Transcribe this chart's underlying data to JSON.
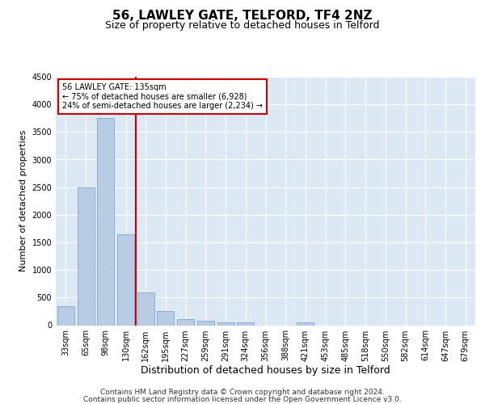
{
  "title1": "56, LAWLEY GATE, TELFORD, TF4 2NZ",
  "title2": "Size of property relative to detached houses in Telford",
  "xlabel": "Distribution of detached houses by size in Telford",
  "ylabel": "Number of detached properties",
  "categories": [
    "33sqm",
    "65sqm",
    "98sqm",
    "130sqm",
    "162sqm",
    "195sqm",
    "227sqm",
    "259sqm",
    "291sqm",
    "324sqm",
    "356sqm",
    "388sqm",
    "421sqm",
    "453sqm",
    "485sqm",
    "518sqm",
    "550sqm",
    "582sqm",
    "614sqm",
    "647sqm",
    "679sqm"
  ],
  "values": [
    350,
    2500,
    3750,
    1650,
    600,
    250,
    105,
    75,
    50,
    50,
    0,
    0,
    50,
    0,
    0,
    0,
    0,
    0,
    0,
    0,
    0
  ],
  "bar_color": "#b8cce4",
  "bar_edge_color": "#7da6cc",
  "vline_color": "#cc0000",
  "vline_x_index": 3,
  "annotation_text": "56 LAWLEY GATE: 135sqm\n← 75% of detached houses are smaller (6,928)\n24% of semi-detached houses are larger (2,234) →",
  "annotation_box_facecolor": "#ffffff",
  "annotation_box_edgecolor": "#cc0000",
  "ylim": [
    0,
    4500
  ],
  "yticks": [
    0,
    500,
    1000,
    1500,
    2000,
    2500,
    3000,
    3500,
    4000,
    4500
  ],
  "grid_color": "#ffffff",
  "bg_color": "#dce9f5",
  "footer_line1": "Contains HM Land Registry data © Crown copyright and database right 2024.",
  "footer_line2": "Contains public sector information licensed under the Open Government Licence v3.0.",
  "title1_fontsize": 11,
  "title2_fontsize": 9,
  "xlabel_fontsize": 9,
  "ylabel_fontsize": 8,
  "tick_fontsize": 7,
  "annotation_fontsize": 7,
  "footer_fontsize": 6.5
}
